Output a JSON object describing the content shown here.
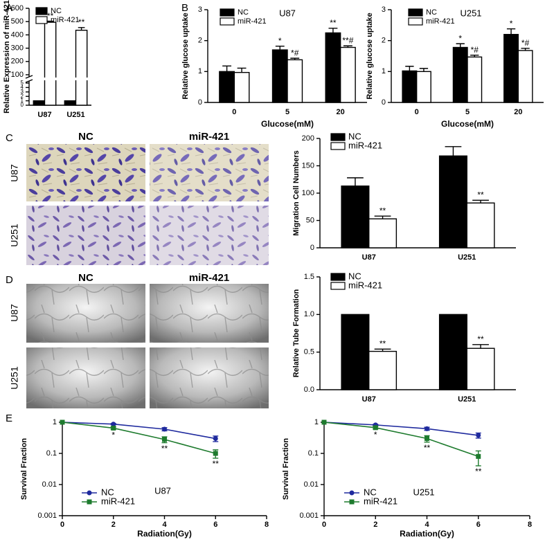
{
  "panel_labels": [
    "A",
    "B",
    "C",
    "D",
    "E"
  ],
  "image_panels": [
    {
      "columns": [
        "NC",
        "miR-421"
      ],
      "rows": [
        "U87",
        "U251"
      ]
    },
    {
      "columns": [
        "NC",
        "miR-421"
      ],
      "rows": [
        "U87",
        "U251"
      ]
    }
  ],
  "chart_data": [
    {
      "type": "bar",
      "ylabel": "Relative Expression of miR-421",
      "categories": [
        "U87",
        "U251"
      ],
      "series": [
        {
          "name": "NC",
          "color": "#000000",
          "values": [
            1,
            1
          ]
        },
        {
          "name": "miR-421",
          "color": "#ffffff",
          "values": [
            495,
            435
          ],
          "errors": [
            8,
            20
          ],
          "annotations": [
            "**",
            "**"
          ]
        }
      ],
      "ylim": [
        0,
        600
      ],
      "axis_break": [
        5,
        100
      ],
      "yticks": [
        0,
        1,
        2,
        3,
        4,
        5,
        100,
        200,
        300,
        400,
        500,
        600
      ],
      "legend": "upper left"
    },
    {
      "type": "bar",
      "title": "U87",
      "ylabel": "Relative glucose uptake",
      "xlabel": "Glucose(mM)",
      "categories": [
        "0",
        "5",
        "20"
      ],
      "series": [
        {
          "name": "NC",
          "color": "#000000",
          "values": [
            1.0,
            1.7,
            2.25
          ],
          "errors": [
            0.18,
            0.12,
            0.15
          ],
          "annotations": [
            null,
            "*",
            "**"
          ]
        },
        {
          "name": "miR-421",
          "color": "#ffffff",
          "values": [
            0.97,
            1.38,
            1.78
          ],
          "errors": [
            0.14,
            0.05,
            0.05
          ],
          "annotations": [
            null,
            "*#",
            "**#"
          ]
        }
      ],
      "ylim": [
        0,
        3
      ],
      "yticks": [
        0,
        1,
        2,
        3
      ],
      "legend": "upper left"
    },
    {
      "type": "bar",
      "title": "U251",
      "ylabel": "Relative glucose uptake",
      "xlabel": "Glucose(mM)",
      "categories": [
        "0",
        "5",
        "20"
      ],
      "series": [
        {
          "name": "NC",
          "color": "#000000",
          "values": [
            1.02,
            1.78,
            2.2
          ],
          "errors": [
            0.15,
            0.12,
            0.18
          ],
          "annotations": [
            null,
            "*",
            "*"
          ]
        },
        {
          "name": "miR-421",
          "color": "#ffffff",
          "values": [
            1.0,
            1.47,
            1.68
          ],
          "errors": [
            0.1,
            0.06,
            0.07
          ],
          "annotations": [
            null,
            "*#",
            "*#"
          ]
        }
      ],
      "ylim": [
        0,
        3
      ],
      "yticks": [
        0,
        1,
        2,
        3
      ],
      "legend": "upper left"
    },
    {
      "type": "bar",
      "ylabel": "Migration Cell Numbers",
      "categories": [
        "U87",
        "U251"
      ],
      "series": [
        {
          "name": "NC",
          "color": "#000000",
          "values": [
            113,
            168
          ],
          "errors": [
            15,
            17
          ]
        },
        {
          "name": "miR-421",
          "color": "#ffffff",
          "values": [
            53,
            82
          ],
          "errors": [
            5,
            5
          ],
          "annotations": [
            "**",
            "**"
          ]
        }
      ],
      "ylim": [
        0,
        200
      ],
      "yticks": [
        0,
        50,
        100,
        150,
        200
      ],
      "legend": "upper left"
    },
    {
      "type": "bar",
      "ylabel": "Relative Tube Formation",
      "categories": [
        "U87",
        "U251"
      ],
      "series": [
        {
          "name": "NC",
          "color": "#000000",
          "values": [
            1,
            1
          ]
        },
        {
          "name": "miR-421",
          "color": "#ffffff",
          "values": [
            0.51,
            0.55
          ],
          "errors": [
            0.03,
            0.05
          ],
          "annotations": [
            "**",
            "**"
          ]
        }
      ],
      "ylim": [
        0,
        1.5
      ],
      "yticks": [
        {
          "value": 0,
          "label": "0.0"
        },
        0.5,
        {
          "value": 1,
          "label": "1.0"
        },
        1.5
      ],
      "legend": "upper left"
    },
    {
      "type": "line",
      "title": "U87",
      "ylabel": "Survival Fraction",
      "xlabel": "Radiation(Gy)",
      "x": [
        0,
        2,
        4,
        6
      ],
      "series": [
        {
          "name": "NC",
          "color": "#1f2a9e",
          "marker": "circle",
          "values": [
            1,
            0.87,
            0.6,
            0.3
          ],
          "errors": [
            0,
            0.04,
            0.07,
            0.06
          ]
        },
        {
          "name": "miR-421",
          "color": "#1e7b2e",
          "marker": "square",
          "values": [
            1,
            0.65,
            0.28,
            0.1
          ],
          "errors": [
            0,
            0.06,
            0.06,
            0.03
          ],
          "annotations": [
            null,
            "*",
            "**",
            "**"
          ]
        }
      ],
      "xlim": [
        0,
        8
      ],
      "xticks": [
        0,
        2,
        4,
        6,
        8
      ],
      "yscale": "log",
      "ylim": [
        0.001,
        1
      ],
      "yticks": [
        0.001,
        0.01,
        0.1,
        1
      ],
      "legend": "lower left"
    },
    {
      "type": "line",
      "title": "U251",
      "ylabel": "Survival Fraction",
      "xlabel": "Radiation(Gy)",
      "x": [
        0,
        2,
        4,
        6
      ],
      "series": [
        {
          "name": "NC",
          "color": "#1f2a9e",
          "marker": "circle",
          "values": [
            1,
            0.82,
            0.62,
            0.38
          ],
          "errors": [
            0,
            0.04,
            0.07,
            0.07
          ]
        },
        {
          "name": "miR-421",
          "color": "#1e7b2e",
          "marker": "square",
          "values": [
            1,
            0.67,
            0.3,
            0.08
          ],
          "errors": [
            0,
            0.06,
            0.07,
            0.04
          ],
          "annotations": [
            null,
            "*",
            "**",
            "**"
          ]
        }
      ],
      "xlim": [
        0,
        8
      ],
      "xticks": [
        0,
        2,
        4,
        6,
        8
      ],
      "yscale": "log",
      "ylim": [
        0.001,
        1
      ],
      "yticks": [
        0.001,
        0.01,
        0.1,
        1
      ],
      "legend": "lower left"
    }
  ]
}
